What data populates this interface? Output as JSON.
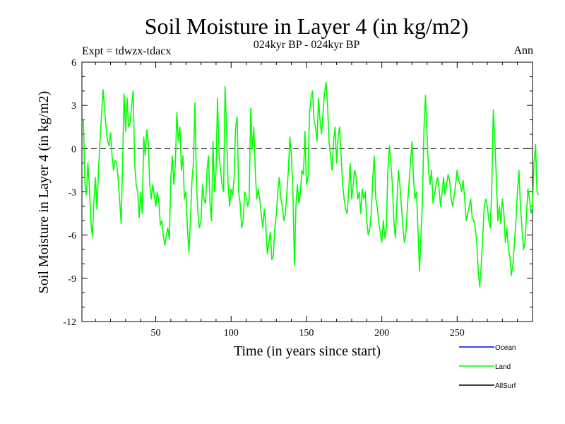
{
  "chart_data": {
    "type": "line",
    "title": "Soil Moisture in Layer 4 (in kg/m2)",
    "subtitle": "024kyr BP - 024kyr BP",
    "left_label": "Expt = tdwzx-tdacx",
    "right_label": "Ann",
    "xlabel": "Time (in years since start)",
    "ylabel": "Soil Moisture in Layer 4 (in kg/m2)",
    "xlim": [
      1,
      300
    ],
    "ylim": [
      -12,
      6
    ],
    "xticks": [
      "50",
      "100",
      "150",
      "200",
      "250"
    ],
    "yticks": [
      "6",
      "3",
      "0",
      "-3",
      "-6",
      "-9",
      "-12"
    ],
    "zero_line": "dashed",
    "legend": {
      "position": "bottom-right",
      "entries": [
        {
          "name": "Ocean",
          "color": "#0000ff"
        },
        {
          "name": "Land",
          "color": "#00ff00"
        },
        {
          "name": "AllSurf",
          "color": "#000000"
        }
      ]
    },
    "series": [
      {
        "name": "Land",
        "color": "#00ff00",
        "x_start": 1,
        "x_step": 1,
        "values": [
          1.8,
          2.0,
          -2.5,
          -3.2,
          -1.0,
          -2.8,
          -5.2,
          -6.1,
          -3.5,
          -2.0,
          -4.2,
          -1.5,
          0.5,
          2.3,
          4.1,
          2.8,
          1.5,
          0.5,
          0.2,
          1.1,
          -0.5,
          -1.5,
          -0.8,
          -1.0,
          -2.0,
          -3.5,
          -5.2,
          -1.0,
          3.8,
          1.2,
          3.5,
          1.5,
          1.8,
          3.0,
          4.0,
          -1.0,
          -2.5,
          -3.0,
          -4.8,
          -3.0,
          -4.5,
          0.8,
          -0.5,
          1.3,
          0.5,
          -2.5,
          -3.5,
          -2.5,
          -3.2,
          -4.0,
          -3.0,
          -3.6,
          -5.3,
          -5.0,
          -6.0,
          -6.7,
          -6.0,
          -5.5,
          -6.3,
          -2.0,
          -0.5,
          -2.5,
          -1.0,
          2.5,
          0.5,
          1.5,
          -1.5,
          -0.5,
          -3.5,
          -3.0,
          -5.5,
          -7.2,
          -5.0,
          -2.2,
          -1.0,
          3.2,
          -2.5,
          -4.5,
          -5.5,
          -5.0,
          -2.5,
          -3.5,
          -3.8,
          -1.5,
          -0.5,
          -3.8,
          -5.0,
          0.5,
          -3.0,
          -1.5,
          3.5,
          -0.5,
          -1.5,
          -2.5,
          -3.0,
          4.3,
          1.2,
          -2.5,
          -4.0,
          -2.8,
          -3.2,
          -2.0,
          1.5,
          2.2,
          -3.0,
          -3.8,
          -5.5,
          -5.0,
          -3.0,
          -3.3,
          -4.0,
          -3.5,
          2.8,
          0.0,
          1.5,
          -1.5,
          -3.5,
          -2.8,
          -3.5,
          -4.5,
          -5.5,
          -4.2,
          -5.2,
          -7.3,
          -6.5,
          -5.8,
          -7.7,
          -7.5,
          -5.5,
          -4.5,
          -3.0,
          -2.0,
          -3.5,
          -4.0,
          -5.0,
          -4.5,
          -3.0,
          -1.5,
          0.8,
          -0.5,
          -3.0,
          -8.1,
          -4.0,
          -2.5,
          -3.8,
          -3.0,
          -1.5,
          -1.8,
          1.2,
          -2.5,
          -2.0,
          2.5,
          3.5,
          4.0,
          2.0,
          1.5,
          0.5,
          3.5,
          2.0,
          1.0,
          2.5,
          3.8,
          4.6,
          3.0,
          0.5,
          -0.5,
          -1.5,
          0.5,
          1.5,
          -1.0,
          0.8,
          1.5,
          -0.5,
          -2.5,
          -3.5,
          -4.2,
          -4.5,
          -3.0,
          -1.0,
          -3.5,
          -2.5,
          -1.5,
          -2.0,
          -3.5,
          -3.0,
          -4.5,
          -2.8,
          -3.5,
          -3.0,
          -5.0,
          -6.0,
          -5.5,
          -4.5,
          -2.0,
          -0.5,
          -3.5,
          -4.0,
          -5.2,
          -5.8,
          -6.5,
          -5.0,
          -6.2,
          -5.5,
          -1.5,
          0.2,
          -1.0,
          -2.5,
          -5.0,
          -6.2,
          -3.8,
          -1.5,
          -2.5,
          -4.0,
          -5.5,
          -6.5,
          -5.8,
          -4.0,
          -2.5,
          -1.0,
          0.5,
          -2.0,
          -3.5,
          -3.0,
          -5.5,
          -8.5,
          -6.0,
          -3.5,
          1.5,
          3.7,
          1.0,
          -1.5,
          -2.5,
          -1.5,
          -3.8,
          -3.2,
          -2.5,
          -2.0,
          -2.8,
          -4.0,
          -3.0,
          -2.0,
          -3.2,
          -2.5,
          -1.8,
          -2.2,
          -3.5,
          -4.0,
          -3.3,
          -2.5,
          -1.5,
          -2.2,
          -2.5,
          -3.0,
          -2.2,
          -3.5,
          -5.0,
          -4.5,
          -4.0,
          -3.5,
          -4.8,
          -5.0,
          -5.5,
          -6.5,
          -8.5,
          -9.6,
          -8.0,
          -6.0,
          -4.0,
          -3.5,
          -4.0,
          -5.0,
          -5.5,
          -2.5,
          2.7,
          0.5,
          -2.0,
          -5.0,
          -4.0,
          -5.2,
          -3.5,
          -4.5,
          -6.5,
          -5.5,
          -7.0,
          -7.5,
          -8.8,
          -8.0,
          -6.5,
          -5.0,
          -3.0,
          -1.5,
          -4.0,
          -5.5,
          -7.0,
          -6.5,
          -4.5,
          -2.8,
          -3.5,
          -4.5,
          -4.0,
          -1.0,
          0.3,
          -3.0,
          -3.2
        ]
      }
    ]
  }
}
